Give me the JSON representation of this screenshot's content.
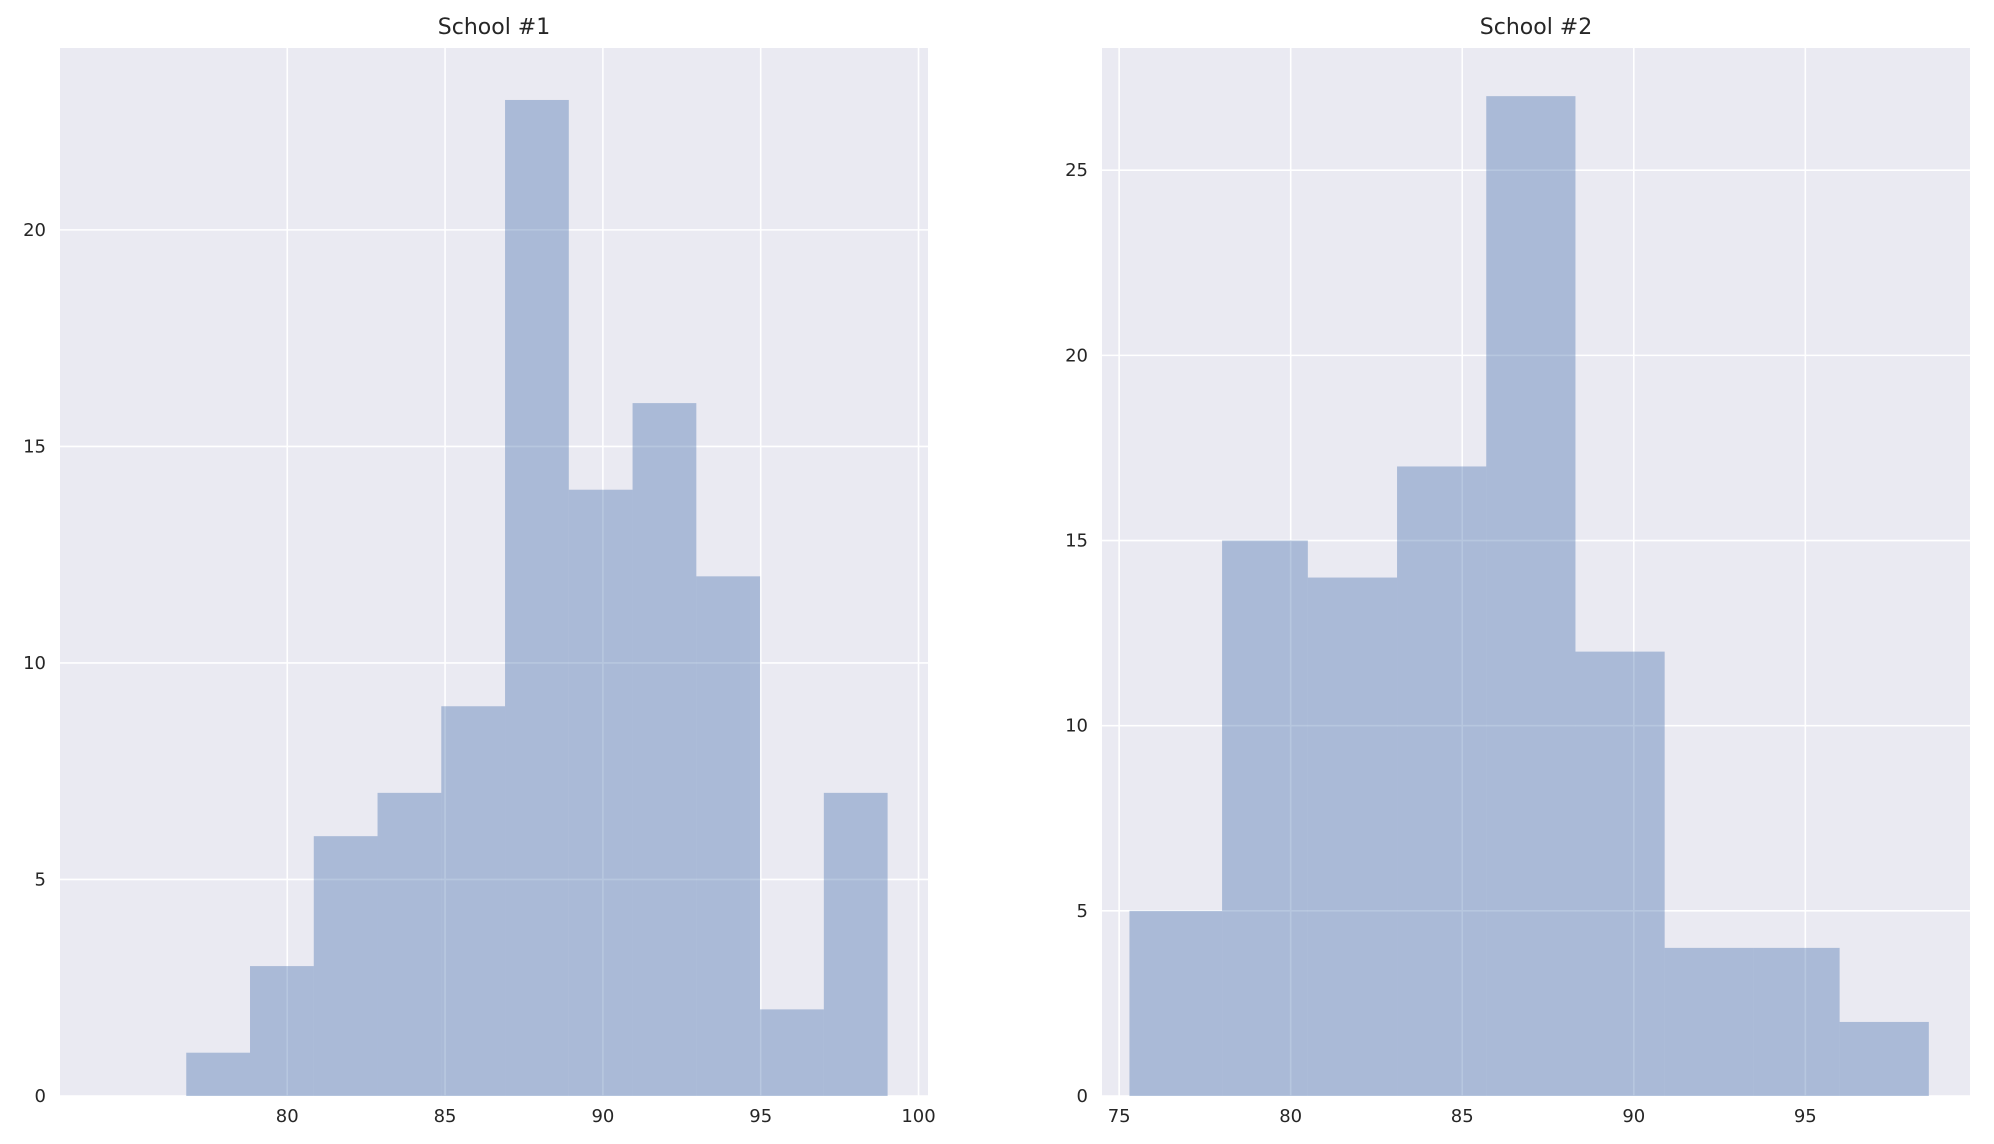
{
  "chart_data": [
    {
      "type": "bar",
      "title": "School #1",
      "xlabel": "",
      "ylabel": "",
      "bin_edges": [
        76.8,
        78.82,
        80.84,
        82.86,
        84.88,
        86.9,
        88.92,
        90.94,
        92.96,
        94.98,
        97.0,
        99.02
      ],
      "values": [
        1,
        3,
        6,
        7,
        9,
        23,
        14,
        16,
        12,
        2,
        7
      ],
      "xlim": [
        72.8,
        100.3
      ],
      "ylim": [
        0,
        24.2
      ],
      "xticks": [
        80,
        85,
        90,
        95,
        100
      ],
      "xtick_labels": [
        "80",
        "85",
        "90",
        "95",
        "100"
      ],
      "yticks": [
        0,
        5,
        10,
        15,
        20
      ],
      "ytick_labels": [
        "0",
        "5",
        "10",
        "15",
        "20"
      ],
      "grid": true,
      "color": "#4c72b0"
    },
    {
      "type": "bar",
      "title": "School #2",
      "xlabel": "",
      "ylabel": "",
      "bin_edges": [
        75.3,
        78.0,
        80.5,
        83.1,
        85.7,
        88.3,
        90.9,
        93.5,
        96.0,
        98.6
      ],
      "values": [
        5,
        15,
        14,
        17,
        27,
        12,
        4,
        4,
        2
      ],
      "xlim": [
        74.5,
        99.8
      ],
      "ylim": [
        0,
        28.3
      ],
      "xticks": [
        75,
        80,
        85,
        90,
        95
      ],
      "xtick_labels": [
        "75",
        "80",
        "85",
        "90",
        "95"
      ],
      "yticks": [
        0,
        5,
        10,
        15,
        20,
        25
      ],
      "ytick_labels": [
        "0",
        "5",
        "10",
        "15",
        "20",
        "25"
      ],
      "grid": true,
      "color": "#4c72b0"
    }
  ]
}
